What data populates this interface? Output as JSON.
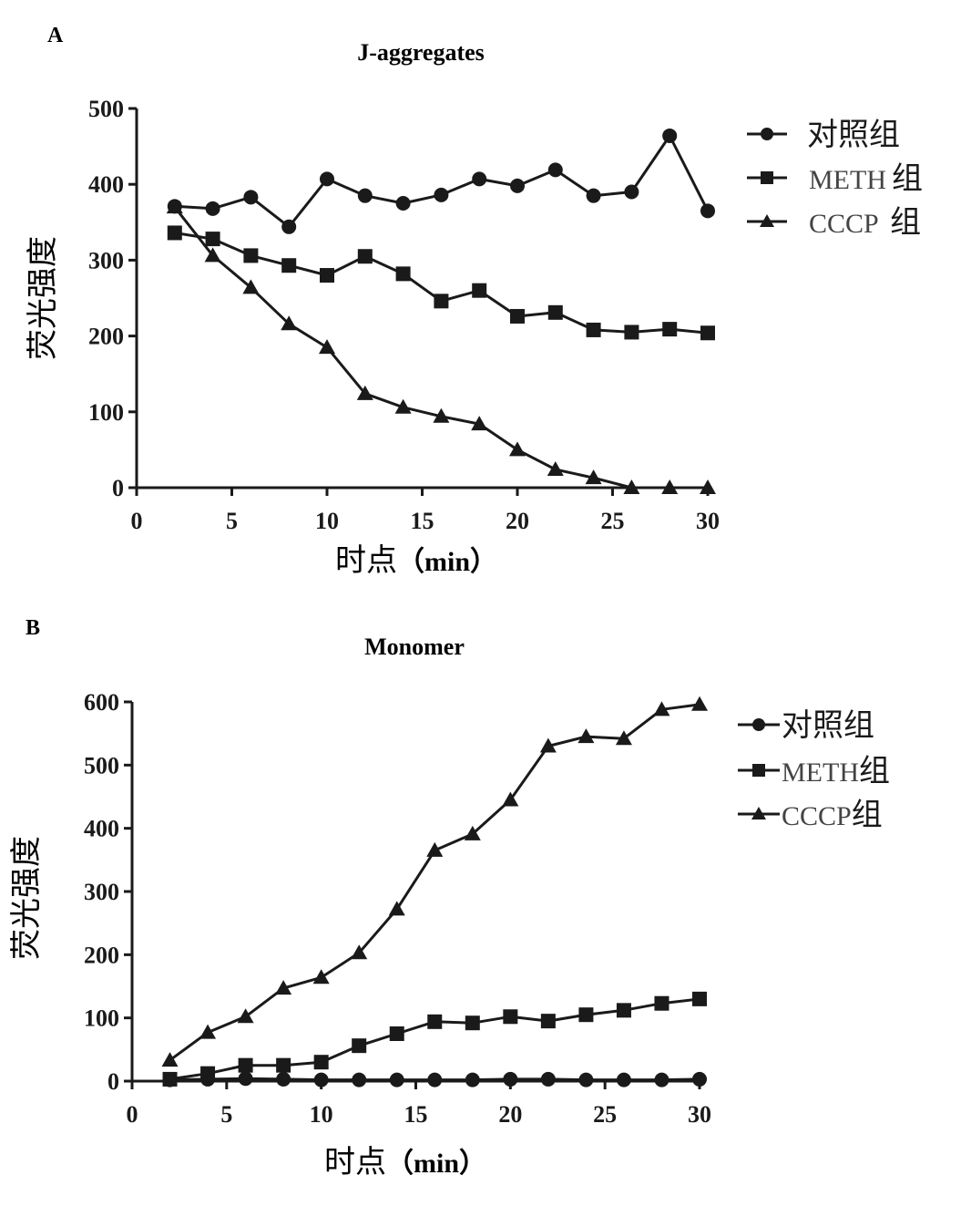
{
  "chart_data": [
    {
      "panel": "A",
      "type": "line",
      "title": "J-aggregates",
      "xlabel": "时点（min）",
      "xlabel_cn": "时点",
      "xlabel_unit": "（min）",
      "ylabel": "荧光强度",
      "xlim": [
        0,
        30
      ],
      "ylim": [
        0,
        500
      ],
      "xticks": [
        0,
        5,
        10,
        15,
        20,
        25,
        30
      ],
      "yticks": [
        0,
        100,
        200,
        300,
        400,
        500
      ],
      "grid": false,
      "legend_position": "top-right",
      "x": [
        2,
        4,
        6,
        8,
        10,
        12,
        14,
        16,
        18,
        20,
        22,
        24,
        26,
        28,
        30
      ],
      "series": [
        {
          "name": "对照组",
          "name_en": "",
          "name_cn": "对照组",
          "marker": "circle",
          "values": [
            371,
            368,
            383,
            344,
            407,
            385,
            375,
            386,
            407,
            398,
            419,
            385,
            390,
            464,
            365
          ]
        },
        {
          "name": "METH组",
          "name_en": "METH",
          "name_cn": "组",
          "marker": "square",
          "values": [
            336,
            328,
            306,
            293,
            280,
            305,
            282,
            246,
            260,
            226,
            231,
            208,
            205,
            209,
            204
          ]
        },
        {
          "name": "CCCP 组",
          "name_en": "CCCP ",
          "name_cn": "组",
          "marker": "triangle",
          "values": [
            370,
            306,
            264,
            216,
            185,
            124,
            106,
            94,
            84,
            50,
            24,
            13,
            0,
            0,
            0
          ]
        }
      ]
    },
    {
      "panel": "B",
      "type": "line",
      "title": "Monomer",
      "xlabel": "时点（min）",
      "xlabel_cn": "时点",
      "xlabel_unit": "（min）",
      "ylabel": "荧光强度",
      "xlim": [
        0,
        30
      ],
      "ylim": [
        0,
        600
      ],
      "xticks": [
        0,
        5,
        10,
        15,
        20,
        25,
        30
      ],
      "yticks": [
        0,
        100,
        200,
        300,
        400,
        500,
        600
      ],
      "grid": false,
      "legend_position": "top-right",
      "x": [
        2,
        4,
        6,
        8,
        10,
        12,
        14,
        16,
        18,
        20,
        22,
        24,
        26,
        28,
        30
      ],
      "series": [
        {
          "name": "对照组",
          "name_en": "",
          "name_cn": "对照组",
          "marker": "circle",
          "values": [
            2,
            3,
            4,
            3,
            2,
            2,
            2,
            2,
            2,
            3,
            3,
            2,
            2,
            2,
            3
          ]
        },
        {
          "name": "METH组",
          "name_en": "METH",
          "name_cn": "组",
          "marker": "square",
          "values": [
            3,
            12,
            25,
            25,
            30,
            56,
            75,
            94,
            92,
            102,
            95,
            105,
            112,
            123,
            130
          ]
        },
        {
          "name": "CCCP组",
          "name_en": "CCCP",
          "name_cn": "组",
          "marker": "triangle",
          "values": [
            33,
            77,
            102,
            147,
            164,
            203,
            272,
            365,
            391,
            445,
            530,
            545,
            542,
            588,
            596
          ]
        }
      ]
    }
  ]
}
